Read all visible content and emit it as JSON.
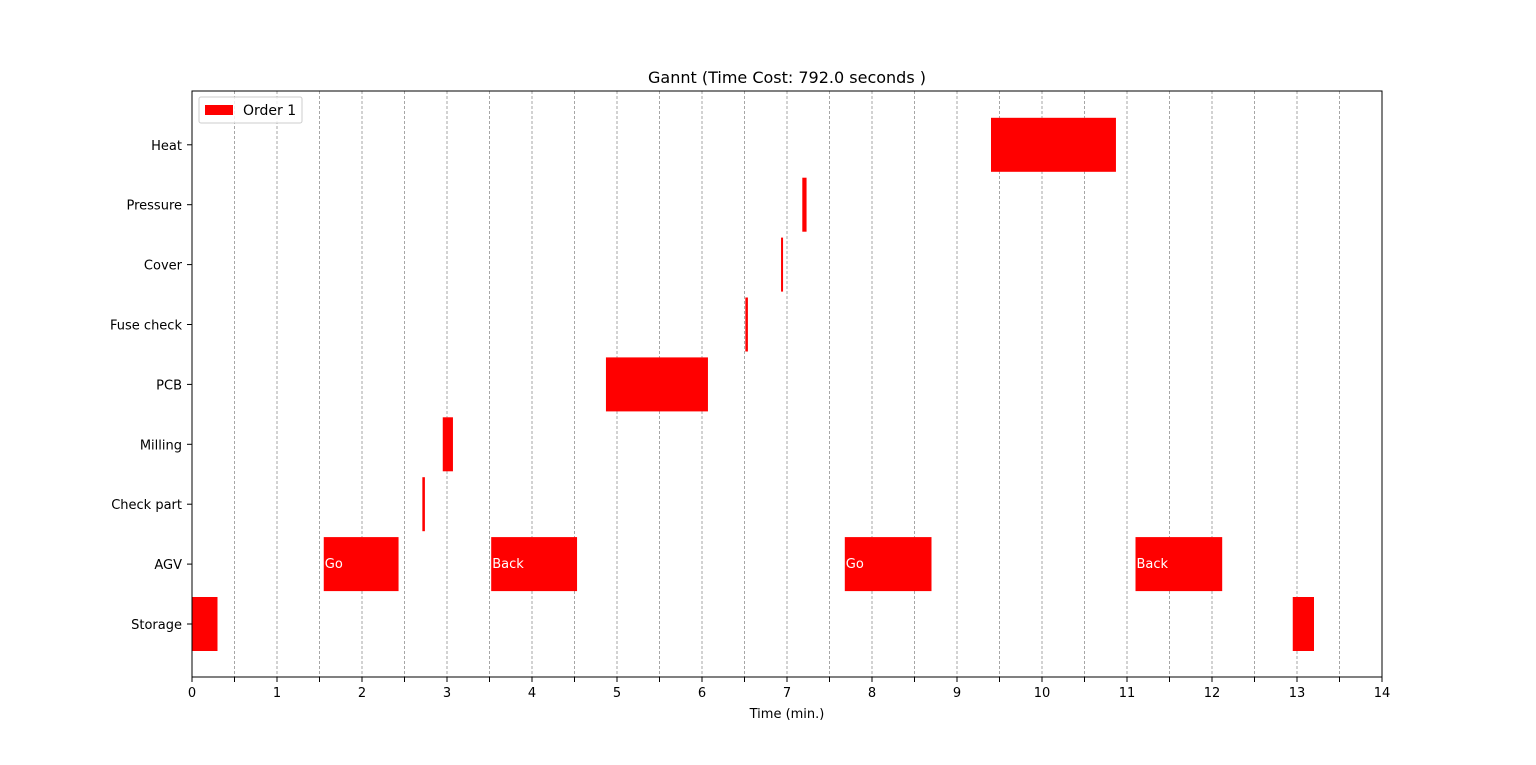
{
  "chart_data": {
    "type": "gantt",
    "title": "Gannt (Time Cost: 792.0 seconds )",
    "xlabel": "Time (min.)",
    "ylabel": "",
    "xlim": [
      0,
      14
    ],
    "x_ticks": [
      0,
      1,
      2,
      3,
      4,
      5,
      6,
      7,
      8,
      9,
      10,
      11,
      12,
      13,
      14
    ],
    "grid": "vertical dashed every 0.5",
    "legend": {
      "position": "top-left",
      "entries": [
        {
          "label": "Order 1",
          "color": "#ff0000"
        }
      ]
    },
    "categories": [
      "Storage",
      "AGV",
      "Check part",
      "Milling",
      "PCB",
      "Fuse check",
      "Cover",
      "Pressure",
      "Heat"
    ],
    "series": [
      {
        "name": "Order 1",
        "color": "#ff0000",
        "tasks": [
          {
            "category": "Storage",
            "start": 0.0,
            "end": 0.3,
            "label": ""
          },
          {
            "category": "AGV",
            "start": 1.55,
            "end": 2.43,
            "label": "Go"
          },
          {
            "category": "Check part",
            "start": 2.71,
            "end": 2.74,
            "label": ""
          },
          {
            "category": "Milling",
            "start": 2.95,
            "end": 3.07,
            "label": ""
          },
          {
            "category": "AGV",
            "start": 3.52,
            "end": 4.53,
            "label": "Back"
          },
          {
            "category": "PCB",
            "start": 4.87,
            "end": 6.07,
            "label": ""
          },
          {
            "category": "Fuse check",
            "start": 6.51,
            "end": 6.54,
            "label": ""
          },
          {
            "category": "Cover",
            "start": 6.93,
            "end": 6.95,
            "label": ""
          },
          {
            "category": "Pressure",
            "start": 7.18,
            "end": 7.23,
            "label": ""
          },
          {
            "category": "AGV",
            "start": 7.68,
            "end": 8.7,
            "label": "Go"
          },
          {
            "category": "Heat",
            "start": 9.4,
            "end": 10.87,
            "label": ""
          },
          {
            "category": "AGV",
            "start": 11.1,
            "end": 12.12,
            "label": "Back"
          },
          {
            "category": "Storage",
            "start": 12.95,
            "end": 13.2,
            "label": ""
          }
        ]
      }
    ]
  }
}
